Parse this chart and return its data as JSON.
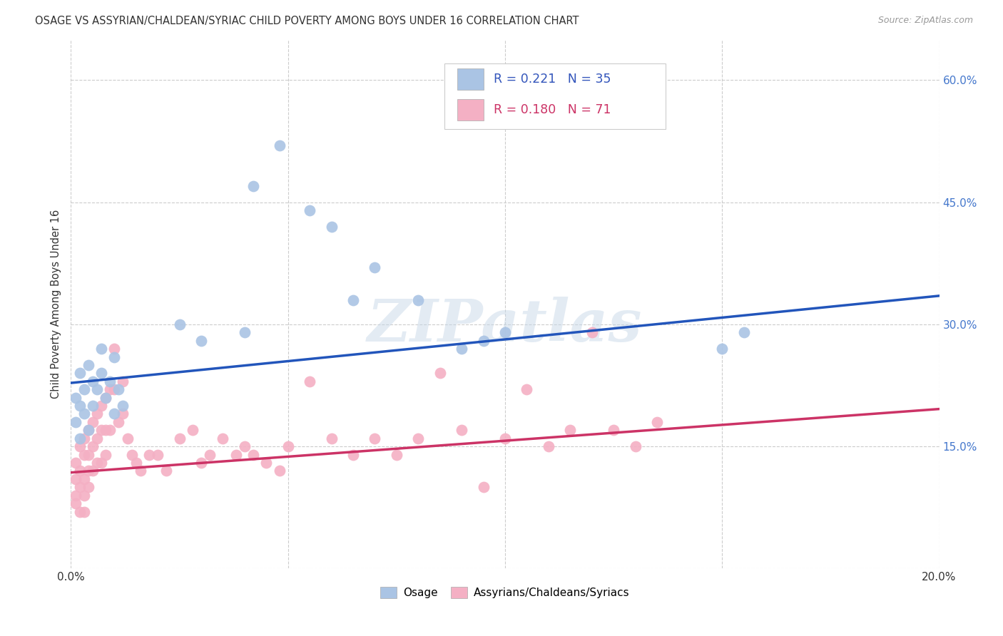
{
  "title": "OSAGE VS ASSYRIAN/CHALDEAN/SYRIAC CHILD POVERTY AMONG BOYS UNDER 16 CORRELATION CHART",
  "source": "Source: ZipAtlas.com",
  "ylabel": "Child Poverty Among Boys Under 16",
  "xlim": [
    0.0,
    0.2
  ],
  "ylim": [
    0.0,
    0.65
  ],
  "xticks": [
    0.0,
    0.05,
    0.1,
    0.15,
    0.2
  ],
  "xticklabels": [
    "0.0%",
    "",
    "",
    "",
    "20.0%"
  ],
  "yticks": [
    0.0,
    0.15,
    0.3,
    0.45,
    0.6
  ],
  "grid_color": "#cccccc",
  "background_color": "#ffffff",
  "osage_color": "#aac4e4",
  "assyrian_color": "#f4b0c4",
  "osage_line_color": "#2255bb",
  "assyrian_line_color": "#cc3366",
  "osage_R": 0.221,
  "osage_N": 35,
  "assyrian_R": 0.18,
  "assyrian_N": 71,
  "legend_label_osage": "Osage",
  "legend_label_assyrian": "Assyrians/Chaldeans/Syriacs",
  "watermark": "ZIPatlas",
  "osage_line_x0": 0.0,
  "osage_line_y0": 0.228,
  "osage_line_x1": 0.2,
  "osage_line_y1": 0.335,
  "assyrian_line_x0": 0.0,
  "assyrian_line_y0": 0.118,
  "assyrian_line_x1": 0.2,
  "assyrian_line_y1": 0.196,
  "osage_x": [
    0.001,
    0.001,
    0.002,
    0.002,
    0.002,
    0.003,
    0.003,
    0.004,
    0.004,
    0.005,
    0.005,
    0.006,
    0.007,
    0.007,
    0.008,
    0.009,
    0.01,
    0.01,
    0.011,
    0.012,
    0.025,
    0.03,
    0.04,
    0.042,
    0.048,
    0.055,
    0.06,
    0.065,
    0.07,
    0.08,
    0.09,
    0.095,
    0.1,
    0.15,
    0.155
  ],
  "osage_y": [
    0.21,
    0.18,
    0.24,
    0.2,
    0.16,
    0.22,
    0.19,
    0.25,
    0.17,
    0.23,
    0.2,
    0.22,
    0.27,
    0.24,
    0.21,
    0.23,
    0.26,
    0.19,
    0.22,
    0.2,
    0.3,
    0.28,
    0.29,
    0.47,
    0.52,
    0.44,
    0.42,
    0.33,
    0.37,
    0.33,
    0.27,
    0.28,
    0.29,
    0.27,
    0.29
  ],
  "assyrian_x": [
    0.001,
    0.001,
    0.001,
    0.001,
    0.002,
    0.002,
    0.002,
    0.002,
    0.003,
    0.003,
    0.003,
    0.003,
    0.003,
    0.004,
    0.004,
    0.004,
    0.004,
    0.005,
    0.005,
    0.005,
    0.006,
    0.006,
    0.006,
    0.007,
    0.007,
    0.007,
    0.008,
    0.008,
    0.008,
    0.009,
    0.009,
    0.01,
    0.01,
    0.011,
    0.012,
    0.012,
    0.013,
    0.014,
    0.015,
    0.016,
    0.018,
    0.02,
    0.022,
    0.025,
    0.028,
    0.03,
    0.032,
    0.035,
    0.038,
    0.04,
    0.042,
    0.045,
    0.048,
    0.05,
    0.055,
    0.06,
    0.065,
    0.07,
    0.075,
    0.08,
    0.085,
    0.09,
    0.095,
    0.1,
    0.105,
    0.11,
    0.115,
    0.12,
    0.125,
    0.13,
    0.135
  ],
  "assyrian_y": [
    0.13,
    0.11,
    0.09,
    0.08,
    0.15,
    0.12,
    0.1,
    0.07,
    0.16,
    0.14,
    0.11,
    0.09,
    0.07,
    0.17,
    0.14,
    0.12,
    0.1,
    0.18,
    0.15,
    0.12,
    0.19,
    0.16,
    0.13,
    0.2,
    0.17,
    0.13,
    0.21,
    0.17,
    0.14,
    0.22,
    0.17,
    0.27,
    0.22,
    0.18,
    0.23,
    0.19,
    0.16,
    0.14,
    0.13,
    0.12,
    0.14,
    0.14,
    0.12,
    0.16,
    0.17,
    0.13,
    0.14,
    0.16,
    0.14,
    0.15,
    0.14,
    0.13,
    0.12,
    0.15,
    0.23,
    0.16,
    0.14,
    0.16,
    0.14,
    0.16,
    0.24,
    0.17,
    0.1,
    0.16,
    0.22,
    0.15,
    0.17,
    0.29,
    0.17,
    0.15,
    0.18
  ]
}
